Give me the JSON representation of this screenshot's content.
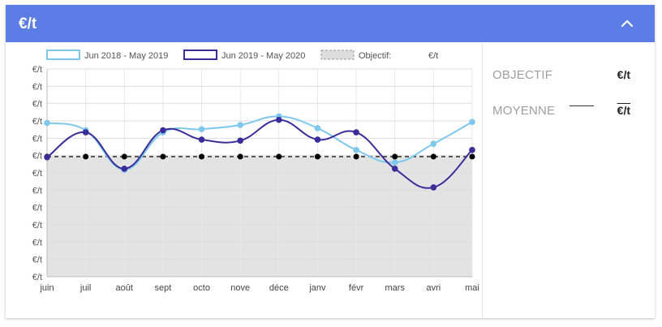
{
  "header": {
    "title": "€/t"
  },
  "legend": {
    "series1": "Jun 2018 - May 2019",
    "series2": "Jun 2019 - May 2020",
    "objectif_label": "Objectif:",
    "objectif_unit": "€/t"
  },
  "stats": {
    "objectif_label": "OBJECTIF",
    "objectif_value": "€/t",
    "moyenne_label": "MOYENNE",
    "moyenne_value": "€/t"
  },
  "colors": {
    "header": "#5b7de5",
    "series1": "#7ec8ec",
    "series2": "#3a2d9a",
    "objectif": "#000000",
    "fill": "#e3e3e3"
  },
  "chart_data": {
    "type": "line",
    "categories": [
      "juin",
      "juil",
      "août",
      "sept",
      "octo",
      "nove",
      "déce",
      "janv",
      "févr",
      "mars",
      "avri",
      "mai"
    ],
    "y_tick_labels": [
      "€/t",
      "€/t",
      "€/t",
      "€/t",
      "€/t",
      "€/t",
      "€/t",
      "€/t",
      "€/t",
      "€/t",
      "€/t",
      "€/t",
      "€/t"
    ],
    "ylim": [
      0,
      10
    ],
    "series": [
      {
        "name": "Jun 2018 - May 2019",
        "values": [
          7.4,
          7.05,
          5.15,
          6.95,
          7.1,
          7.3,
          7.72,
          7.15,
          6.1,
          5.5,
          6.4,
          7.45
        ]
      },
      {
        "name": "Jun 2019 - May 2020",
        "values": [
          5.75,
          6.95,
          5.2,
          7.05,
          6.6,
          6.55,
          7.55,
          6.6,
          6.95,
          5.2,
          4.3,
          6.1
        ]
      },
      {
        "name": "Objectif:",
        "values": [
          5.78,
          5.78,
          5.78,
          5.78,
          5.78,
          5.78,
          5.78,
          5.78,
          5.78,
          5.78,
          5.78,
          5.78
        ]
      }
    ],
    "grid": true,
    "legend_position": "top"
  }
}
